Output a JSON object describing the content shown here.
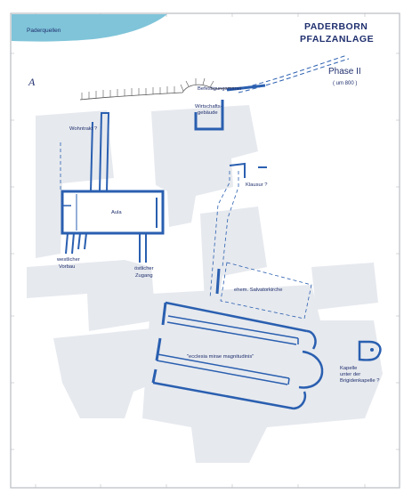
{
  "header": {
    "title_line1": "PADERBORN",
    "title_line2": "PFALZANLAGE",
    "phase": "Phase II",
    "date": "( um 800 )"
  },
  "labels": {
    "paderquellen": "Paderquellen",
    "befestigungsmauer": "Befestigungsmauer",
    "wirtschaft_line1": "Wirtschafts-",
    "wirtschaft_line2": "gebäude",
    "wohntrakt": "Wohntrakt ?",
    "klausur": "Klausur ?",
    "aula": "Aula",
    "westlicher_line1": "westlicher",
    "westlicher_line2": "Vorbau",
    "oestlicher_line1": "östlicher",
    "oestlicher_line2": "Zugang",
    "salvator": "ehem. Salvatorkirche",
    "ecclesia": "\"ecclesia mirae magnitudinis\"",
    "kapelle_line1": "Kapelle",
    "kapelle_line2": "unter der",
    "kapelle_line3": "Brigidenkapelle ?"
  },
  "north_arrow": "A",
  "colors": {
    "wall": "#2a5fb0",
    "water": "#7fc4d9",
    "shadow": "#e6e9ee",
    "frame": "#b9bcc2",
    "text": "#1f2f6e"
  }
}
